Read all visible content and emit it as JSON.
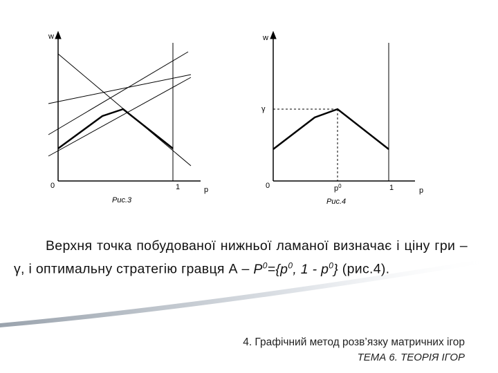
{
  "figure3": {
    "w_label": "w",
    "origin_label": "0",
    "one_label": "1",
    "p_label": "p",
    "caption": "Рис.3"
  },
  "figure4": {
    "w_label": "w",
    "gamma_label": "γ",
    "origin_label": "0",
    "p0_label": "p",
    "p0_sup": "0",
    "one_label": "1",
    "p_label": "p",
    "caption": "Рис.4"
  },
  "paragraph": {
    "text": "Верхня точка побудованої нижньої ламаної визначає і ціну гри – γ, і оптимальну стратегію гравця А – ",
    "formula_p": "P",
    "sup1": "0",
    "formula_mid": "={p",
    "sup2": "0",
    "formula_mid2": ", 1 - p",
    "sup3": "0",
    "formula_end": "}",
    "tail": " (рис.4)."
  },
  "footer": {
    "topic": "4. Графічний метод розв’язку матричних ігор",
    "theme": "ТЕМА 6. ТЕОРІЯ ІГОР"
  }
}
